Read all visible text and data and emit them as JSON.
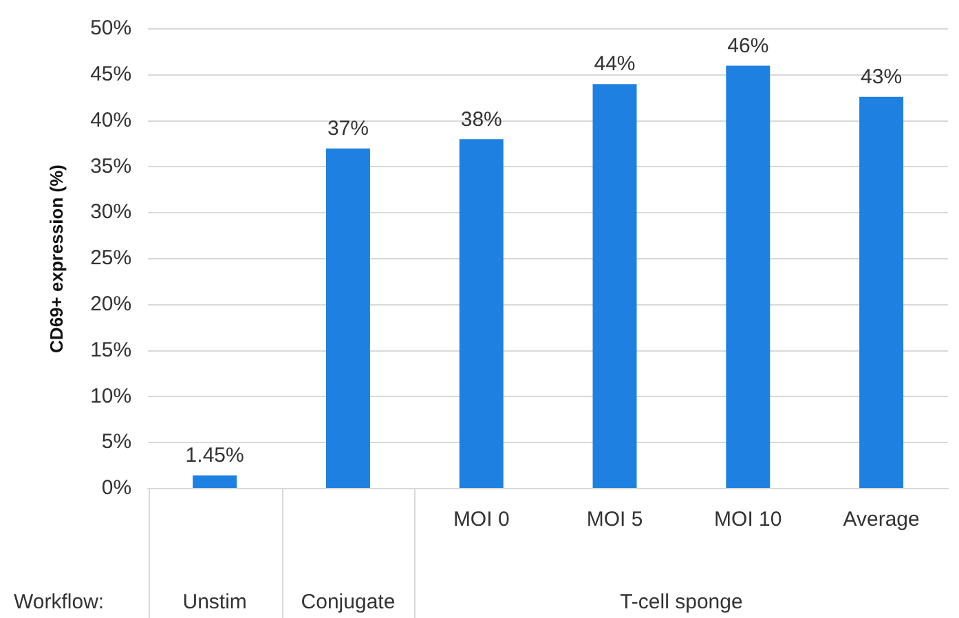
{
  "chart_data": {
    "type": "bar",
    "categories": [
      null,
      null,
      "MOI 0",
      "MOI 5",
      "MOI 10",
      "Average"
    ],
    "values": [
      1.45,
      37,
      38,
      44,
      46,
      42.6
    ],
    "value_labels": [
      "1.45%",
      "37%",
      "38%",
      "44%",
      "46%",
      "43%"
    ],
    "color": "#1e80e0",
    "ylabel": "CD69+ expression (%)",
    "xlabel": "Workflow:",
    "annotations": [
      "Unstim",
      "Conjugate",
      "T-cell sponge"
    ],
    "ylim": [
      0,
      50
    ],
    "yticks": [
      {
        "value": 0,
        "label": "0%"
      },
      {
        "value": 5,
        "label": "5%"
      },
      {
        "value": 10,
        "label": "10%"
      },
      {
        "value": 15,
        "label": "15%"
      },
      {
        "value": 20,
        "label": "20%"
      },
      {
        "value": 25,
        "label": "25%"
      },
      {
        "value": 30,
        "label": "30%"
      },
      {
        "value": 35,
        "label": "35%"
      },
      {
        "value": 40,
        "label": "40%"
      },
      {
        "value": 45,
        "label": "45%"
      },
      {
        "value": 50,
        "label": "50%"
      }
    ],
    "grid": "y",
    "legend": false
  }
}
